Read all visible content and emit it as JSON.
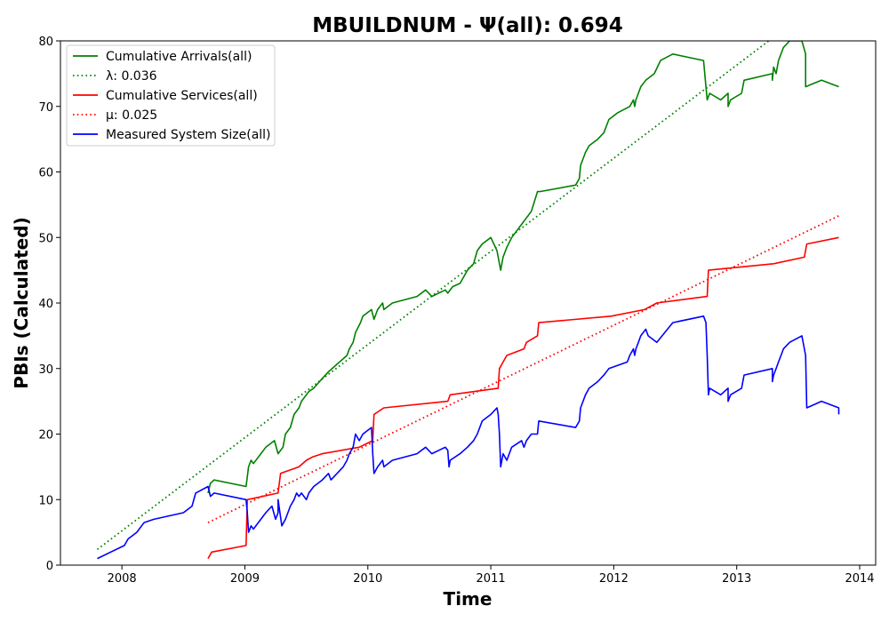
{
  "chart_data": {
    "type": "line",
    "title": "MBUILDNUM -  Ψ(all): 0.694",
    "xlabel": "Time",
    "ylabel": "PBIs (Calculated)",
    "xlim": [
      2007.5,
      2014.13
    ],
    "ylim": [
      0,
      80
    ],
    "x_ticks": [
      "2008",
      "2009",
      "2010",
      "2011",
      "2012",
      "2013",
      "2014"
    ],
    "y_ticks": [
      "0",
      "10",
      "20",
      "30",
      "40",
      "50",
      "60",
      "70",
      "80"
    ],
    "grid": false,
    "legend_position": "top-left",
    "series": [
      {
        "name": "Cumulative Arrivals(all)",
        "style": "solid",
        "color": "#008000",
        "x": [
          2008.7,
          2008.72,
          2008.75,
          2009.01,
          2009.03,
          2009.05,
          2009.07,
          2009.17,
          2009.24,
          2009.27,
          2009.29,
          2009.31,
          2009.33,
          2009.37,
          2009.4,
          2009.44,
          2009.46,
          2009.5,
          2009.52,
          2009.56,
          2009.63,
          2009.68,
          2009.83,
          2009.85,
          2009.88,
          2009.9,
          2009.94,
          2009.96,
          2010.03,
          2010.05,
          2010.08,
          2010.12,
          2010.13,
          2010.2,
          2010.4,
          2010.47,
          2010.52,
          2010.63,
          2010.65,
          2010.69,
          2010.75,
          2010.81,
          2010.86,
          2010.89,
          2010.93,
          2011.0,
          2011.05,
          2011.08,
          2011.1,
          2011.13,
          2011.17,
          2011.25,
          2011.33,
          2011.38,
          2011.4,
          2011.69,
          2011.72,
          2011.73,
          2011.77,
          2011.8,
          2011.87,
          2011.92,
          2011.96,
          2012.03,
          2012.13,
          2012.16,
          2012.17,
          2012.18,
          2012.2,
          2012.22,
          2012.26,
          2012.33,
          2012.38,
          2012.48,
          2012.73,
          2012.75,
          2012.76,
          2012.78,
          2012.87,
          2012.93,
          2012.93,
          2012.95,
          2013.04,
          2013.06,
          2013.29,
          2013.29,
          2013.3,
          2013.32,
          2013.34,
          2013.38,
          2013.43,
          2013.53,
          2013.56,
          2013.56,
          2013.69,
          2013.83
        ],
        "values": [
          11,
          12.5,
          13,
          12,
          15,
          16,
          15.5,
          18,
          19,
          17,
          17.5,
          18,
          20,
          21,
          23,
          24,
          25,
          26,
          26.5,
          27,
          28.5,
          29.5,
          32,
          33,
          34,
          35.5,
          37,
          38,
          39,
          37.5,
          39,
          40,
          39,
          40,
          41,
          42,
          41,
          42,
          41.5,
          42.5,
          43,
          45,
          46,
          48,
          49,
          50,
          48,
          45,
          47,
          48.5,
          50,
          52,
          54,
          57,
          57,
          58,
          59,
          61,
          63,
          64,
          65,
          66,
          68,
          69,
          70,
          71,
          70,
          71,
          72,
          73,
          74,
          75,
          77,
          78,
          77,
          73,
          71,
          72,
          71,
          72,
          70,
          71,
          72,
          74,
          75,
          74,
          76,
          75,
          77,
          79,
          80,
          80,
          78,
          73,
          74,
          73
        ]
      },
      {
        "name": "λ: 0.036",
        "style": "dotted",
        "color": "#008000",
        "x": [
          2007.8,
          2013.26
        ],
        "values": [
          2.4,
          80
        ]
      },
      {
        "name": "Cumulative Services(all)",
        "style": "solid",
        "color": "#ff0000",
        "x": [
          2008.7,
          2008.73,
          2009.01,
          2009.02,
          2009.27,
          2009.29,
          2009.44,
          2009.5,
          2009.55,
          2009.63,
          2009.93,
          2010.04,
          2010.05,
          2010.13,
          2010.65,
          2010.67,
          2011.06,
          2011.07,
          2011.1,
          2011.13,
          2011.27,
          2011.29,
          2011.38,
          2011.39,
          2011.98,
          2012.25,
          2012.35,
          2012.76,
          2012.77,
          2013.3,
          2013.55,
          2013.57,
          2013.83
        ],
        "values": [
          1,
          2,
          3,
          10,
          11,
          14,
          15,
          16,
          16.5,
          17,
          18,
          19,
          23,
          24,
          25,
          26,
          27,
          30,
          31,
          32,
          33,
          34,
          35,
          37,
          38,
          39,
          40,
          41,
          45,
          46,
          47,
          49,
          50
        ]
      },
      {
        "name": "μ: 0.025",
        "style": "dotted",
        "color": "#ff0000",
        "x": [
          2008.7,
          2013.83
        ],
        "values": [
          6.5,
          53.3
        ]
      },
      {
        "name": "Measured System Size(all)",
        "style": "solid",
        "color": "#0000ff",
        "x": [
          2007.8,
          2008.02,
          2008.05,
          2008.12,
          2008.16,
          2008.18,
          2008.26,
          2008.5,
          2008.57,
          2008.6,
          2008.7,
          2008.72,
          2008.75,
          2009.01,
          2009.02,
          2009.03,
          2009.05,
          2009.07,
          2009.17,
          2009.22,
          2009.25,
          2009.27,
          2009.27,
          2009.3,
          2009.33,
          2009.37,
          2009.4,
          2009.42,
          2009.44,
          2009.46,
          2009.5,
          2009.52,
          2009.56,
          2009.63,
          2009.68,
          2009.7,
          2009.8,
          2009.83,
          2009.85,
          2009.88,
          2009.9,
          2009.93,
          2009.96,
          2010.03,
          2010.04,
          2010.05,
          2010.08,
          2010.12,
          2010.13,
          2010.2,
          2010.4,
          2010.47,
          2010.52,
          2010.63,
          2010.65,
          2010.66,
          2010.67,
          2010.75,
          2010.81,
          2010.86,
          2010.89,
          2010.93,
          2011.0,
          2011.05,
          2011.06,
          2011.07,
          2011.08,
          2011.1,
          2011.13,
          2011.17,
          2011.25,
          2011.27,
          2011.29,
          2011.33,
          2011.38,
          2011.39,
          2011.69,
          2011.72,
          2011.73,
          2011.77,
          2011.8,
          2011.87,
          2011.92,
          2011.96,
          2012.11,
          2012.13,
          2012.16,
          2012.17,
          2012.18,
          2012.2,
          2012.22,
          2012.26,
          2012.28,
          2012.35,
          2012.48,
          2012.73,
          2012.75,
          2012.76,
          2012.77,
          2012.78,
          2012.87,
          2012.93,
          2012.93,
          2012.95,
          2013.04,
          2013.06,
          2013.29,
          2013.29,
          2013.3,
          2013.32,
          2013.34,
          2013.38,
          2013.43,
          2013.53,
          2013.55,
          2013.56,
          2013.57,
          2013.69,
          2013.83,
          2013.83
        ],
        "values": [
          1,
          3,
          4,
          5,
          6,
          6.5,
          7,
          8,
          9,
          11,
          12,
          10.5,
          11,
          10,
          8,
          5,
          6,
          5.5,
          8,
          9,
          7,
          8,
          10,
          6,
          7,
          9,
          10,
          11,
          10.5,
          11,
          10,
          11,
          12,
          13,
          14,
          13,
          15,
          16,
          17,
          18,
          20,
          19,
          20,
          21,
          17,
          14,
          15,
          16,
          15,
          16,
          17,
          18,
          17,
          18,
          17.5,
          15,
          16,
          17,
          18,
          19,
          20,
          22,
          23,
          24,
          23,
          20,
          15,
          17,
          16,
          18,
          19,
          18,
          19,
          20,
          20,
          22,
          21,
          22,
          24,
          26,
          27,
          28,
          29,
          30,
          31,
          32,
          33,
          32,
          33,
          34,
          35,
          36,
          35,
          34,
          37,
          38,
          37,
          32,
          26,
          27,
          26,
          27,
          25,
          26,
          27,
          29,
          30,
          28,
          29,
          30,
          31,
          33,
          34,
          35,
          33,
          32,
          24,
          25,
          24,
          23
        ]
      }
    ]
  }
}
